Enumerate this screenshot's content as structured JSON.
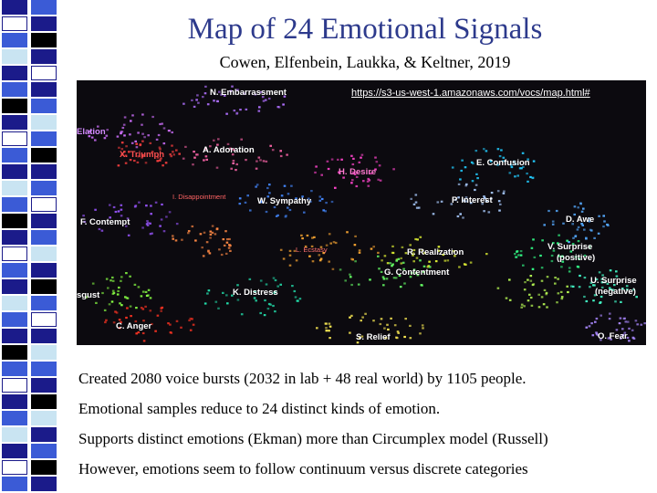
{
  "slide": {
    "title": "Map of 24 Emotional Signals",
    "subtitle": "Cowen, Elfenbein, Laukka, & Keltner, 2019",
    "map_link": "https://s3-us-west-1.amazonaws.com/vocs/map.html#"
  },
  "emotion_labels": [
    "N. Embarrassment",
    "Elation",
    "X. Triumph",
    "A. Adoration",
    "H. Desire",
    "E. Confusion",
    "I. Disappointment",
    "W. Sympathy",
    "P. Interest",
    "F. Contempt",
    "D. Awe",
    "L. Ecstasy",
    "R. Realization",
    "V. Surprise",
    "(positive)",
    "G. Contentment",
    "U. Surprise",
    "(negative)",
    "sgust",
    "K. Distress",
    "C. Anger",
    "S. Relief",
    "O. Fear"
  ],
  "bullets": [
    "Created 2080 voice bursts (2032 in lab + 48 real world) by 1105 people.",
    "Emotional samples reduce to 24 distinct kinds of emotion.",
    "Supports distinct emotions (Ekman) more than Circumplex model (Russell)",
    "However, emotions seem to follow continuum versus discrete categories"
  ],
  "colors": {
    "title": "#2d3a8c",
    "map_background": "#0c0a0f",
    "strip_palette": [
      "#1b1b8a",
      "#3b5bd6",
      "#ffffff",
      "#000000",
      "#c9e4f2"
    ]
  }
}
